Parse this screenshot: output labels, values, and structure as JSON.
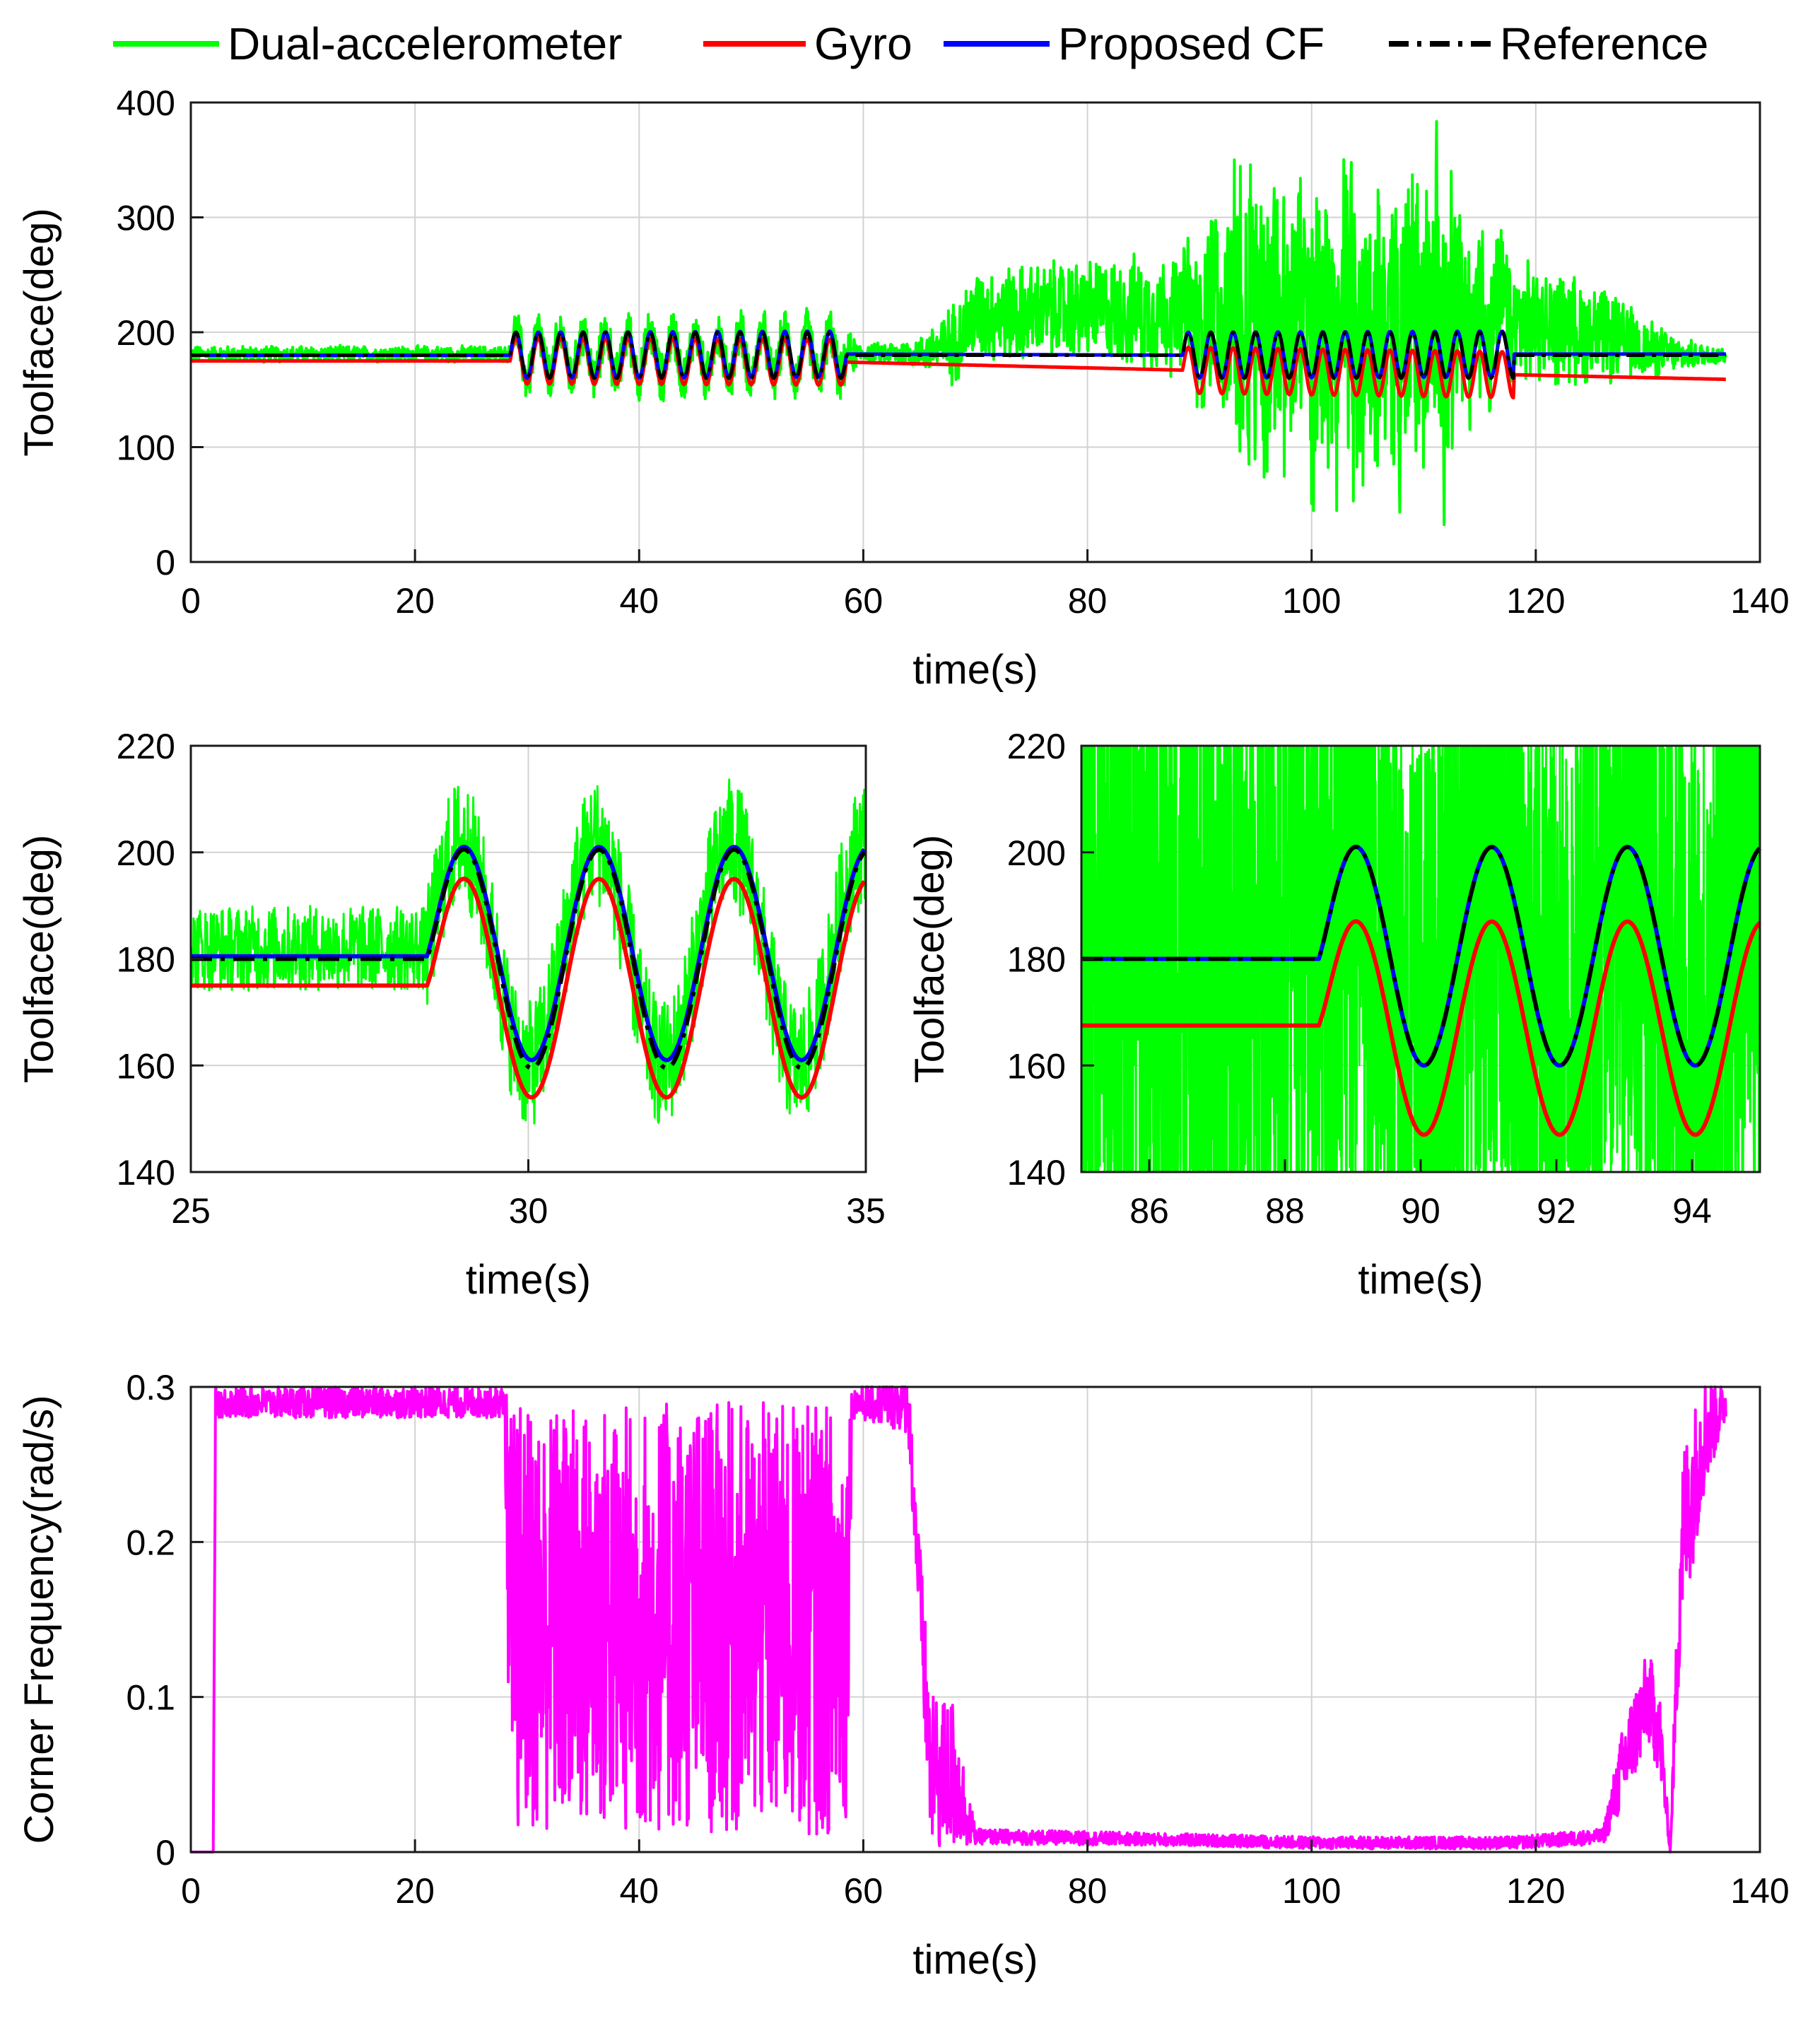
{
  "legend": [
    {
      "label": "Dual-accelerometer",
      "color": "#00ff00",
      "dash": "solid"
    },
    {
      "label": "Gyro",
      "color": "#ff0000",
      "dash": "solid"
    },
    {
      "label": "Proposed CF",
      "color": "#0000ff",
      "dash": "solid"
    },
    {
      "label": "Reference",
      "color": "#000000",
      "dash": "dashdot"
    }
  ],
  "chart_data": [
    {
      "id": "top",
      "type": "line",
      "title": "",
      "xlabel": "time(s)",
      "ylabel": "Toolface(deg)",
      "xlim": [
        0,
        140
      ],
      "ylim": [
        0,
        400
      ],
      "xticks": [
        0,
        20,
        40,
        60,
        80,
        100,
        120,
        140
      ],
      "yticks": [
        0,
        100,
        200,
        300,
        400
      ],
      "grid": true,
      "series": [
        {
          "name": "Dual-accelerometer",
          "color": "#00ff00",
          "description_points": {
            "x": [
              0,
              28.5,
              29,
              58.5,
              60,
              65,
              68,
              70,
              80,
              88.5,
              95,
              105,
              110,
              118,
              125,
              130,
              133,
              137
            ],
            "y_center": [
              181,
              181,
              180,
              180,
              182,
              182,
              190,
              215,
              220,
              215,
              210,
              205,
              205,
              210,
              200,
              185,
              180,
              180
            ],
            "noise_amp": [
              8,
              8,
              25,
              25,
              8,
              15,
              40,
              45,
              50,
              60,
              150,
              150,
              150,
              60,
              50,
              30,
              15,
              8
            ]
          }
        },
        {
          "name": "Gyro",
          "color": "#ff0000",
          "x": [
            0,
            28.5,
            58.5,
            88.5,
            118,
            137
          ],
          "y": [
            175,
            175,
            174,
            167,
            163,
            159
          ]
        },
        {
          "name": "Proposed CF",
          "color": "#0000ff",
          "x": [
            0,
            28.5,
            58.5,
            88.5,
            118,
            137
          ],
          "y": [
            180,
            180,
            181,
            180,
            181,
            181
          ]
        },
        {
          "name": "Reference",
          "color": "#000000",
          "x": [
            0,
            28.5,
            58.5,
            88.5,
            118,
            137
          ],
          "y": [
            180,
            180,
            180,
            180,
            180,
            180
          ]
        }
      ],
      "oscillation_segments": [
        {
          "start": 28.5,
          "end": 58.5,
          "amplitude": 20,
          "period": 2
        },
        {
          "start": 88.5,
          "end": 118,
          "amplitude": 20,
          "period": 2
        }
      ]
    },
    {
      "id": "mid-left",
      "type": "line",
      "xlabel": "time(s)",
      "ylabel": "Toolface(deg)",
      "xlim": [
        25,
        35
      ],
      "ylim": [
        140,
        220
      ],
      "xticks": [
        25,
        30,
        35
      ],
      "yticks": [
        140,
        160,
        180,
        200,
        220
      ],
      "grid": true,
      "oscillation_start": 28.5,
      "period": 2,
      "series": [
        {
          "name": "Dual-accelerometer",
          "color": "#00ff00",
          "baseline": 182,
          "amplitude": 21,
          "noise_amp": 8
        },
        {
          "name": "Gyro",
          "color": "#ff0000",
          "baseline": 175,
          "center": 174.5,
          "amplitude": 20.5
        },
        {
          "name": "Proposed CF",
          "color": "#0000ff",
          "baseline": 180.5,
          "center": 181,
          "amplitude": 20
        },
        {
          "name": "Reference",
          "color": "#000000",
          "baseline": 180,
          "center": 180,
          "amplitude": 20.5
        }
      ]
    },
    {
      "id": "mid-right",
      "type": "line",
      "xlabel": "time(s)",
      "ylabel": "Toolface(deg)",
      "xlim": [
        85,
        95
      ],
      "ylim": [
        140,
        220
      ],
      "xticks": [
        86,
        88,
        90,
        92,
        94
      ],
      "yticks": [
        140,
        160,
        180,
        200,
        220
      ],
      "grid": true,
      "oscillation_start": 88.5,
      "period": 2,
      "series": [
        {
          "name": "Dual-accelerometer",
          "color": "#00ff00",
          "baseline": 180,
          "amplitude": 20,
          "noise_amp": 60
        },
        {
          "name": "Gyro",
          "color": "#ff0000",
          "baseline": 167.5,
          "center": 167,
          "amplitude": 20
        },
        {
          "name": "Proposed CF",
          "color": "#0000ff",
          "baseline": 180,
          "center": 180.5,
          "amplitude": 20.5
        },
        {
          "name": "Reference",
          "color": "#000000",
          "baseline": 180,
          "center": 180.5,
          "amplitude": 20.5
        }
      ]
    },
    {
      "id": "bottom",
      "type": "line",
      "xlabel": "time(s)",
      "ylabel": "Corner Frequency(rad/s)",
      "xlim": [
        0,
        140
      ],
      "ylim": [
        0,
        0.3
      ],
      "xticks": [
        0,
        20,
        40,
        60,
        80,
        100,
        120,
        140
      ],
      "yticks": [
        0,
        0.1,
        0.2,
        0.3
      ],
      "ytick_labels": [
        "0",
        "0.1",
        "0.2",
        "0.3"
      ],
      "grid": true,
      "series": [
        {
          "name": "Corner Frequency",
          "color": "#ff00ff",
          "x": [
            0,
            2,
            2.2,
            28,
            28.5,
            58.5,
            59,
            64,
            66,
            68,
            70,
            88,
            100,
            118,
            126,
            128,
            130,
            131,
            132,
            133,
            135,
            137
          ],
          "y": [
            0,
            0,
            0.29,
            0.29,
            0.15,
            0.15,
            0.29,
            0.29,
            0.05,
            0.05,
            0.01,
            0.008,
            0.006,
            0.006,
            0.01,
            0.06,
            0.1,
            0.08,
            0.0,
            0.2,
            0.27,
            0.29
          ],
          "noise_amp": [
            0,
            0,
            0.01,
            0.01,
            0.14,
            0.14,
            0.01,
            0.02,
            0.05,
            0.05,
            0.005,
            0.004,
            0.004,
            0.004,
            0.005,
            0.03,
            0.03,
            0.03,
            0,
            0.06,
            0.04,
            0.01
          ]
        }
      ]
    }
  ]
}
